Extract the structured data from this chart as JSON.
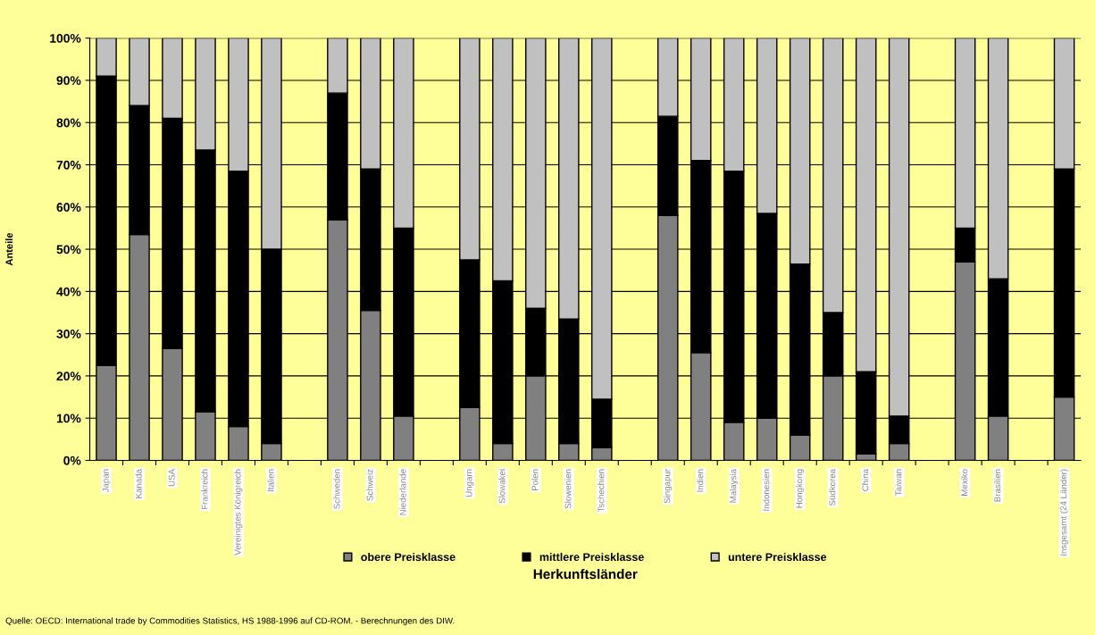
{
  "chart_data": {
    "type": "bar",
    "stacked": true,
    "xlabel": "Herkunftsländer",
    "ylabel": "Anteile",
    "categories": [
      "Japan",
      "Kanada",
      "USA",
      "Frankreich",
      "Vereinigtes Königreich",
      "Italien",
      null,
      "Schweden",
      "Schweiz",
      "Niederlande",
      null,
      "Ungarn",
      "Slowakei",
      "Polen",
      "Slowenien",
      "Tschechien",
      null,
      "Singapur",
      "Indien",
      "Malaysia",
      "Indonesien",
      "Hongkong",
      "Südkorea",
      "China",
      "Taiwan",
      null,
      "Mexiko",
      "Brasilien",
      null,
      "Insgesamt (24 Länder)"
    ],
    "series": [
      {
        "name": "obere Preisklasse",
        "color": "#808080",
        "values": [
          22.5,
          53.5,
          26.5,
          11.5,
          8,
          4,
          null,
          57,
          35.5,
          10.5,
          null,
          12.5,
          4,
          20,
          4,
          3,
          null,
          58,
          25.5,
          9,
          10,
          6,
          20,
          1.5,
          4,
          null,
          47,
          10.5,
          null,
          15
        ]
      },
      {
        "name": "mittlere Preisklasse",
        "color": "#000000",
        "values": [
          68.5,
          30.5,
          54.5,
          62,
          60.5,
          46,
          null,
          30,
          33.5,
          44.5,
          null,
          35,
          38.5,
          16,
          29.5,
          11.5,
          null,
          23.5,
          45.5,
          59.5,
          48.5,
          40.5,
          15,
          19.5,
          6.5,
          null,
          8,
          32.5,
          null,
          54
        ]
      },
      {
        "name": "untere Preisklasse",
        "color": "#c0c0c0",
        "values": [
          9,
          16,
          19,
          26.5,
          31.5,
          50,
          null,
          13,
          31,
          45,
          null,
          52.5,
          57.5,
          64,
          66.5,
          85.5,
          null,
          18.5,
          29,
          31.5,
          41.5,
          53.5,
          65,
          79,
          89.5,
          null,
          45,
          57,
          null,
          31
        ]
      }
    ],
    "ylim": [
      0,
      100
    ],
    "yticks": [
      {
        "value": 0,
        "label": "0%"
      },
      {
        "value": 10,
        "label": "10%"
      },
      {
        "value": 20,
        "label": "20%"
      },
      {
        "value": 30,
        "label": "30%"
      },
      {
        "value": 40,
        "label": "40%"
      },
      {
        "value": 50,
        "label": "50%"
      },
      {
        "value": 60,
        "label": "60%"
      },
      {
        "value": 70,
        "label": "70%"
      },
      {
        "value": 80,
        "label": "80%"
      },
      {
        "value": 90,
        "label": "90%"
      },
      {
        "value": 100,
        "label": "100%"
      }
    ],
    "grid": "y",
    "legend": "bottom",
    "annotations": [
      "Quelle: OECD: International trade by Commodities Statistics, HS 1988-1996 auf CD-ROM. - Berechnungen des DIW."
    ]
  }
}
